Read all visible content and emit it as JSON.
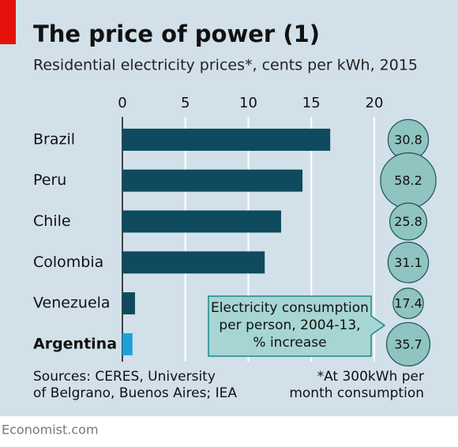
{
  "chart_data": {
    "type": "bar",
    "title": "The price of power (1)",
    "subtitle": "Residential electricity prices*, cents per kWh, 2015",
    "categories": [
      "Brazil",
      "Peru",
      "Chile",
      "Colombia",
      "Venezuela",
      "Argentina"
    ],
    "values": [
      16.5,
      14.3,
      12.6,
      11.3,
      1.0,
      0.8
    ],
    "colors": [
      "#0f4a5e",
      "#0f4a5e",
      "#0f4a5e",
      "#0f4a5e",
      "#0f4a5e",
      "#1ea0d8"
    ],
    "highlight": "Argentina",
    "xlim": [
      0,
      20
    ],
    "xticks": [
      0,
      5,
      10,
      15,
      20
    ],
    "grid": true,
    "bubbles": {
      "values": [
        30.8,
        58.2,
        25.8,
        31.1,
        17.4,
        35.7
      ],
      "color": "#8fc4c0"
    },
    "annotation": [
      "Electricity consumption",
      "per person, 2004-13,",
      "% increase"
    ],
    "sources": [
      "Sources: CERES, University",
      "of Belgrano, Buenos Aires; IEA"
    ],
    "footnote": [
      "*At 300kWh per",
      "month consumption"
    ],
    "credit": "Economist.com"
  }
}
